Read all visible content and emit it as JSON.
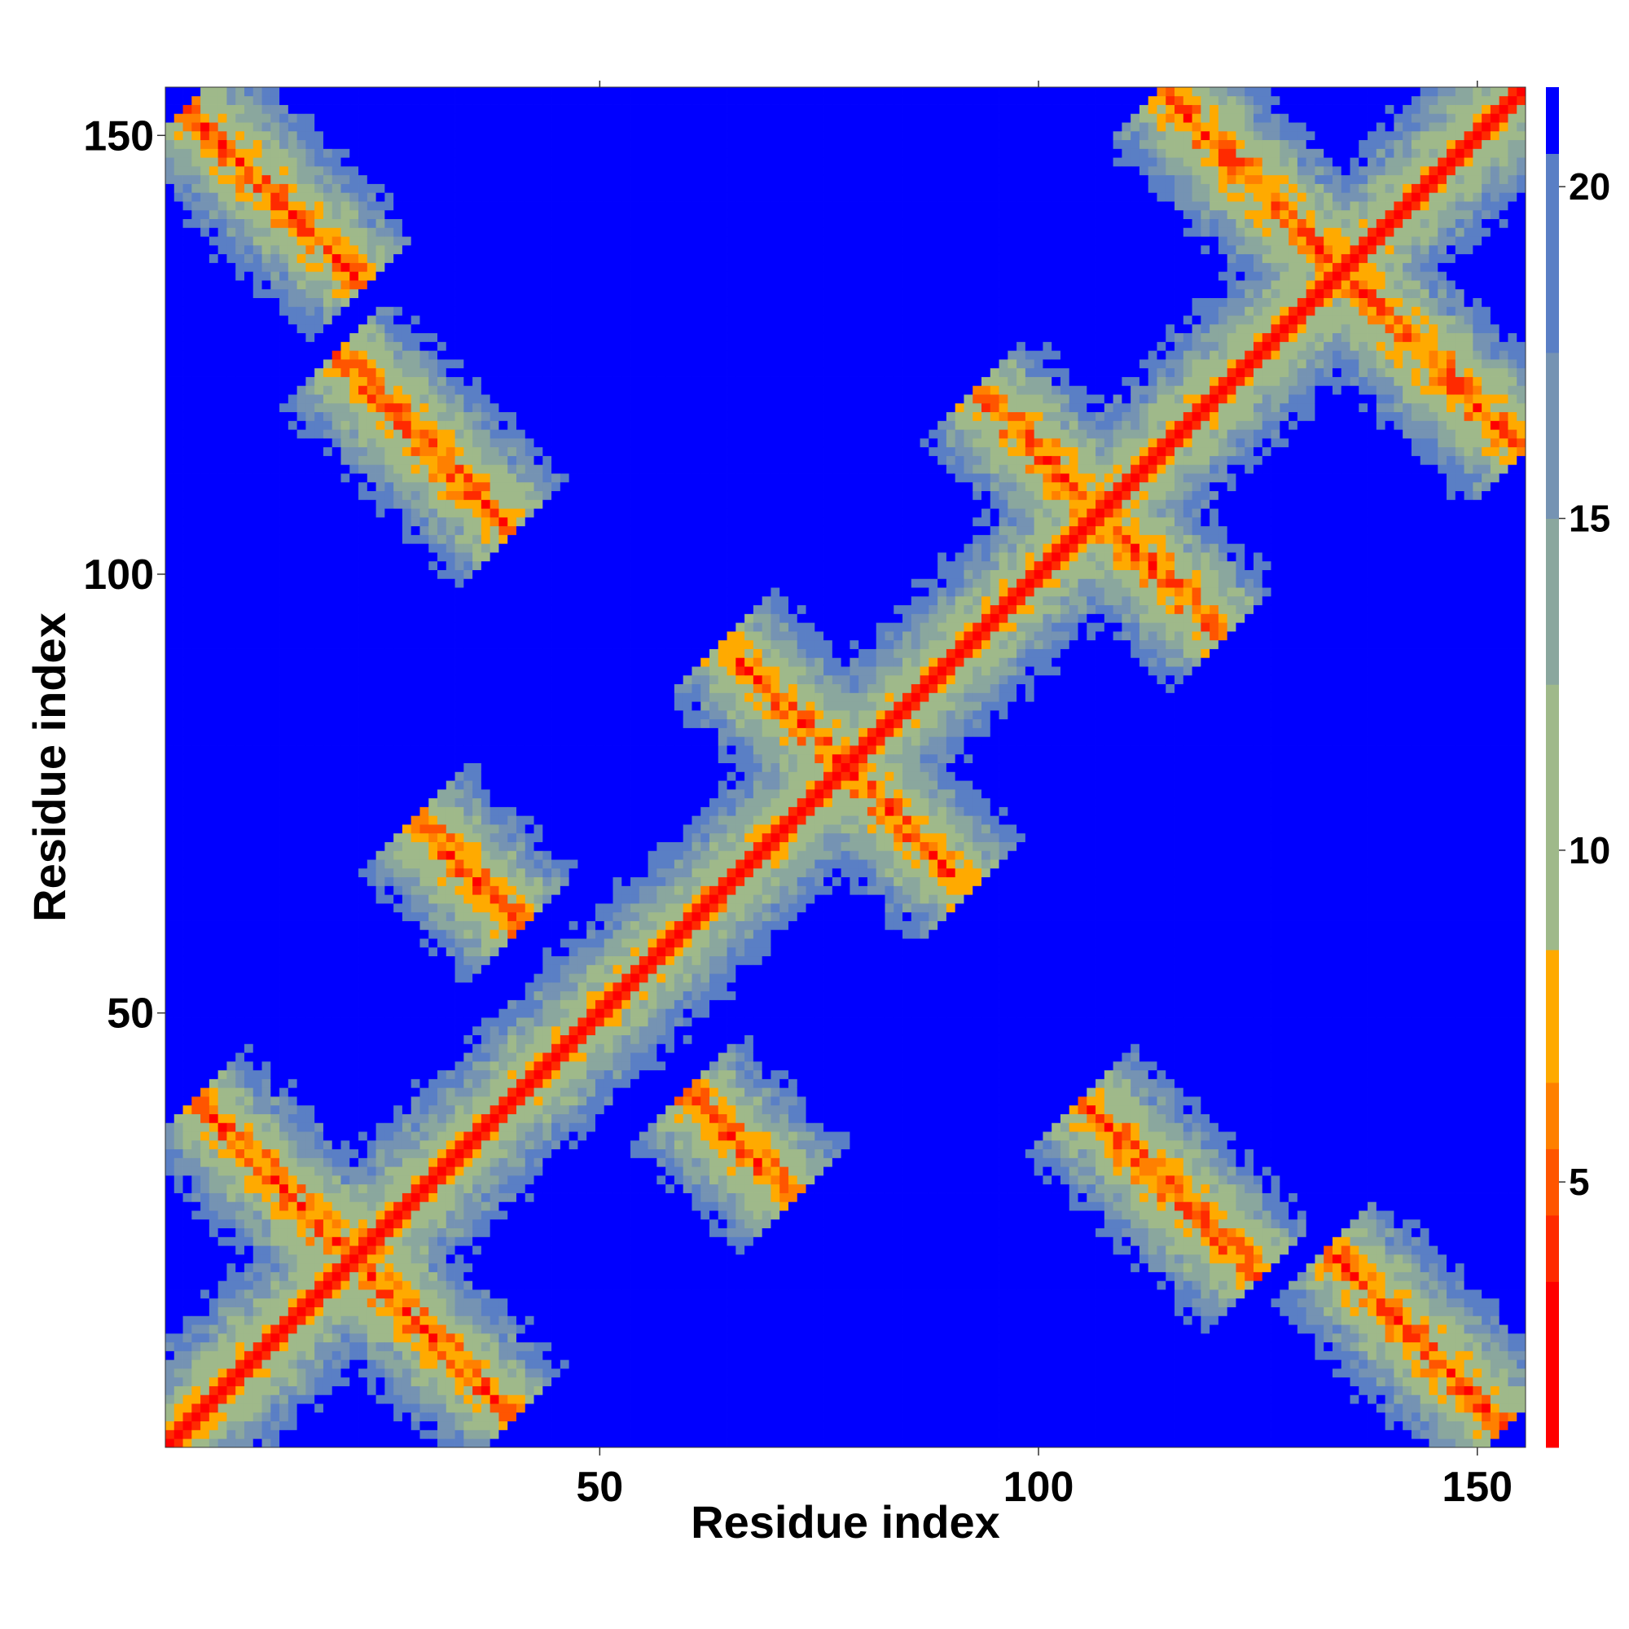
{
  "chart_data": {
    "type": "heatmap",
    "title": "",
    "xlabel": "Residue index",
    "ylabel": "Residue index",
    "n_residues": 155,
    "xlim": [
      1,
      155
    ],
    "ylim": [
      1,
      155
    ],
    "x_ticks": [
      50,
      100,
      150
    ],
    "y_ticks": [
      50,
      100,
      150
    ],
    "colorbar": {
      "ticks": [
        5,
        10,
        15,
        20
      ],
      "range": [
        1,
        21.5
      ],
      "colors": [
        "#ff0000",
        "#ff2a00",
        "#ff5500",
        "#ff8000",
        "#ffaa00",
        "#9fb98a",
        "#8aa79e",
        "#7593b3",
        "#5a7fc5",
        "#0000ff"
      ],
      "boundaries": [
        1,
        3.5,
        4.5,
        5.5,
        6.5,
        8.5,
        12.5,
        15.0,
        17.5,
        20.5,
        21.5
      ]
    },
    "secondary_structure_contacts": [
      {
        "kind": "antiparallel",
        "center_i": 22,
        "center_j": 22,
        "length": 18
      },
      {
        "kind": "antiparallel",
        "center_i": 35,
        "center_j": 66,
        "length": 6
      },
      {
        "kind": "antiparallel",
        "center_i": 13,
        "center_j": 143,
        "length": 10
      },
      {
        "kind": "antiparallel",
        "center_i": 78,
        "center_j": 78,
        "length": 14
      },
      {
        "kind": "antiparallel",
        "center_i": 107,
        "center_j": 107,
        "length": 14
      },
      {
        "kind": "antiparallel",
        "center_i": 124,
        "center_j": 145,
        "length": 10
      },
      {
        "kind": "antiparallel",
        "center_i": 30,
        "center_j": 115,
        "length": 10
      }
    ]
  },
  "colors": {
    "near": "#ff0000",
    "mid": "#ffaa00",
    "far": "#0000ff"
  }
}
